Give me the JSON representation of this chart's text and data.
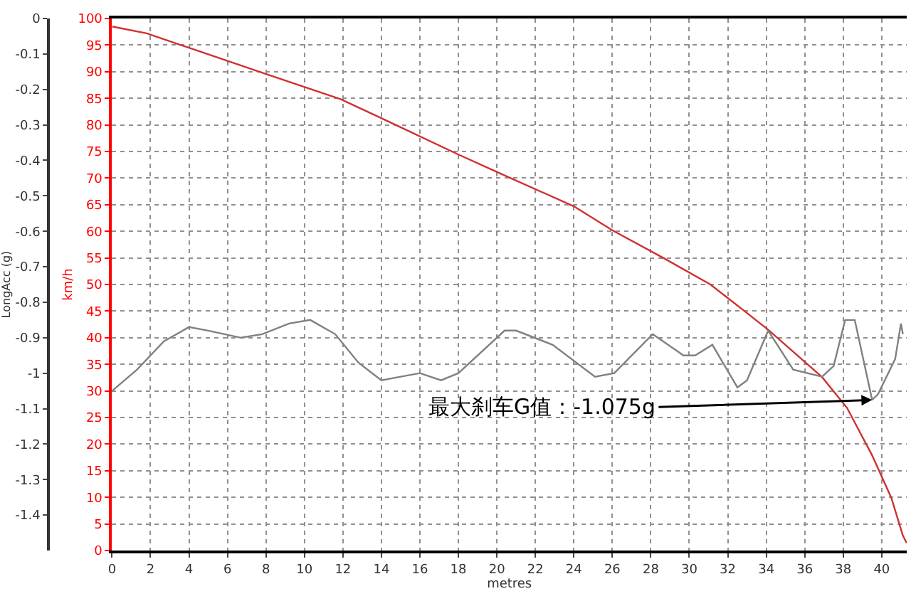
{
  "chart_data": {
    "type": "line",
    "xlabel": "metres",
    "ylabel": "km/h",
    "y2label": "LongAcc (g)",
    "series": [
      {
        "color": "#d03030",
        "x": [
          0,
          1.8,
          4,
          7.9,
          11.9,
          14.8,
          17.9,
          20.4,
          24.0,
          26.0,
          28.7,
          31.1,
          32.8,
          34.1,
          36.9,
          38.2,
          39.5,
          40.5,
          41.1,
          41.3
        ],
        "values": [
          98.5,
          97.2,
          94.5,
          89.7,
          84.8,
          79.9,
          74.6,
          70.5,
          64.7,
          60.2,
          54.9,
          50,
          45.2,
          41.5,
          32.6,
          26.8,
          17.9,
          9.9,
          2.8,
          1.4
        ]
      },
      {
        "color": "#808080",
        "axis": "y2",
        "x": [
          0,
          1.3,
          2.7,
          4,
          5,
          6.7,
          7.8,
          9.2,
          10.3,
          11.6,
          12.8,
          14,
          15,
          16,
          17.1,
          18,
          20.4,
          21.0,
          22.9,
          25.1,
          26.1,
          28.1,
          29.7,
          30.3,
          31.2,
          32.5,
          33.0,
          34.1,
          35.4,
          36.9,
          37.5,
          38.1,
          38.6,
          39.5,
          39.8,
          40.7,
          41.0,
          41.1
        ],
        "values": [
          -1.05,
          -0.99,
          -0.91,
          -0.87,
          -0.88,
          -0.9,
          -0.89,
          -0.86,
          -0.85,
          -0.89,
          -0.97,
          -1.02,
          -1.01,
          -1.0,
          -1.02,
          -1.0,
          -0.88,
          -0.88,
          -0.92,
          -1.01,
          -1.0,
          -0.89,
          -0.95,
          -0.95,
          -0.92,
          -1.04,
          -1.02,
          -0.88,
          -0.99,
          -1.01,
          -0.98,
          -0.85,
          -0.85,
          -1.075,
          -1.06,
          -0.96,
          -0.86,
          -0.89
        ]
      }
    ],
    "xlim": [
      0,
      41.3
    ],
    "xticks": [
      0,
      2,
      4,
      6,
      8,
      10,
      12,
      14,
      16,
      18,
      20,
      22,
      24,
      26,
      28,
      30,
      32,
      34,
      36,
      38,
      40
    ],
    "ylim": [
      0,
      100
    ],
    "yticks": [
      0,
      5,
      10,
      15,
      20,
      25,
      30,
      35,
      40,
      45,
      50,
      55,
      60,
      65,
      70,
      75,
      80,
      85,
      90,
      95,
      100
    ],
    "y2lim": [
      -1.5,
      0
    ],
    "y2ticks": [
      0,
      -0.1,
      -0.2,
      -0.3,
      -0.4,
      -0.5,
      -0.6,
      -0.7,
      -0.8,
      -0.9,
      -1,
      -1.1,
      -1.2,
      -1.3,
      -1.4
    ],
    "grid": true,
    "marker": "none",
    "line_style": "solid",
    "annotations": [
      {
        "text": "最大刹车G值：-1.075g",
        "x": 39.5,
        "y": 28.3
      }
    ]
  }
}
